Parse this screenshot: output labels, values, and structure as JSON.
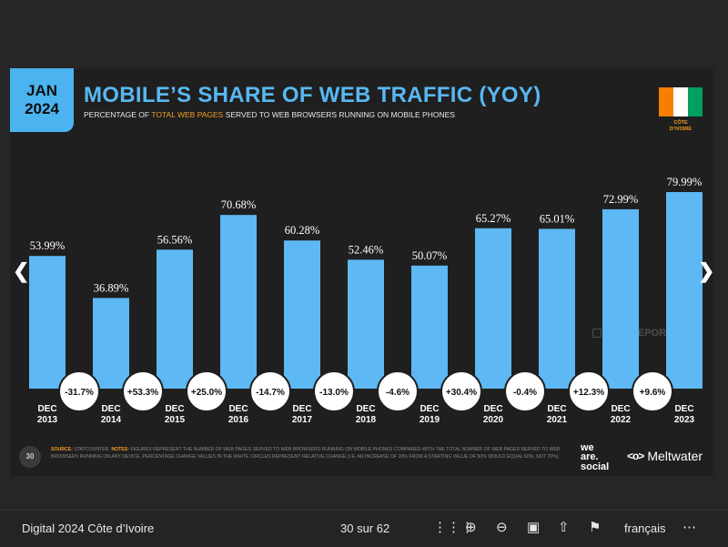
{
  "badge": {
    "month": "JAN",
    "year": "2024"
  },
  "title": "MOBILE’S SHARE OF WEB TRAFFIC (YOY)",
  "subtitle": {
    "before": "PERCENTAGE OF ",
    "highlight": "TOTAL WEB PAGES",
    "after": " SERVED TO WEB BROWSERS RUNNING ON MOBILE PHONES"
  },
  "country": {
    "line1": "CÔTE",
    "line2": "D’IVOIRE",
    "flag_colors": [
      "#f77f00",
      "#ffffff",
      "#009e60"
    ]
  },
  "watermark": "DATAREPORTAL",
  "chart_data": {
    "type": "bar",
    "categories": [
      "DEC 2013",
      "DEC 2014",
      "DEC 2015",
      "DEC 2016",
      "DEC 2017",
      "DEC 2018",
      "DEC 2019",
      "DEC 2020",
      "DEC 2021",
      "DEC 2022",
      "DEC 2023"
    ],
    "category_lines": [
      [
        "DEC",
        "2013"
      ],
      [
        "DEC",
        "2014"
      ],
      [
        "DEC",
        "2015"
      ],
      [
        "DEC",
        "2016"
      ],
      [
        "DEC",
        "2017"
      ],
      [
        "DEC",
        "2018"
      ],
      [
        "DEC",
        "2019"
      ],
      [
        "DEC",
        "2020"
      ],
      [
        "DEC",
        "2021"
      ],
      [
        "DEC",
        "2022"
      ],
      [
        "DEC",
        "2023"
      ]
    ],
    "values": [
      53.99,
      36.89,
      56.56,
      70.68,
      60.28,
      52.46,
      50.07,
      65.27,
      65.01,
      72.99,
      79.99
    ],
    "value_labels": [
      "53.99%",
      "36.89%",
      "56.56%",
      "70.68%",
      "60.28%",
      "52.46%",
      "50.07%",
      "65.27%",
      "65.01%",
      "72.99%",
      "79.99%"
    ],
    "changes": [
      "-31.7%",
      "+53.3%",
      "+25.0%",
      "-14.7%",
      "-13.0%",
      "-4.6%",
      "+30.4%",
      "-0.4%",
      "+12.3%",
      "+9.6%"
    ],
    "ylim": [
      0,
      100
    ],
    "grid": false,
    "bar_color": "#5db8f3",
    "title": "MOBILE’S SHARE OF WEB TRAFFIC (YOY)",
    "xlabel": "",
    "ylabel": ""
  },
  "footer": {
    "page": "30",
    "source_label": "SOURCE:",
    "source_text": " STATCOUNTER. ",
    "notes_label": "NOTES:",
    "notes_text": " FIGURES REPRESENT THE NUMBER OF WEB PAGES SERVED TO WEB BROWSERS RUNNING ON MOBILE PHONES COMPARED WITH THE TOTAL NUMBER OF WEB PAGES SERVED TO WEB BROWSERS RUNNING ON ANY DEVICE. PERCENTAGE CHANGE VALUES IN THE WHITE CIRCLES REPRESENT RELATIVE CHANGE (I.E. AN INCREASE OF 20% FROM A STARTING VALUE OF 50% WOULD EQUAL 60%, NOT 70%).",
    "brand1_lines": [
      "we",
      "are.",
      "social"
    ],
    "brand2": "Meltwater"
  },
  "viewer": {
    "doc_title": "Digital 2024 Côte d’Ivoire",
    "page_indicator": "30 sur 62",
    "language": "français",
    "icons": [
      "grid-icon",
      "zoom-in-icon",
      "zoom-out-icon",
      "fullscreen-icon",
      "share-icon",
      "flag-icon",
      "more-icon"
    ]
  }
}
